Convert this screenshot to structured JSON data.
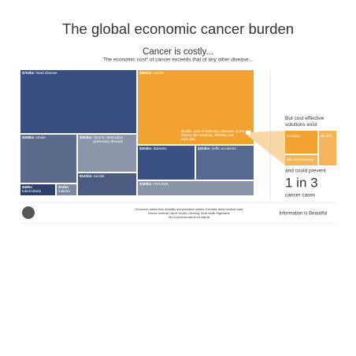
{
  "title": "The global economic cancer burden",
  "subtitle": "Cancer is costly...",
  "intro": "The economic cost* of cancer exceeds that of any other disease...",
  "chart_data": {
    "type": "treemap",
    "categories": [
      "heart disease",
      "cancer",
      "stroke",
      "chronic obstructive pulmonary disease",
      "suicide",
      "tuberculosis",
      "malaria",
      "diabetes",
      "traffic accidents",
      "HIV/AIDS"
    ],
    "values": [
      753,
      895,
      298,
      203,
      141,
      45,
      12,
      204,
      204,
      193
    ],
    "value_labels": [
      "$753bn",
      "$895bn",
      "$298bn",
      "$203bn",
      "$141bn",
      "$45bn",
      "$12bn",
      "$204bn",
      "$204bn",
      "$193bn"
    ],
    "colors": [
      "#384d80",
      "#f2a231",
      "#5a6a8b",
      "#8b97a9",
      "#4b5c80",
      "#2e4070",
      "#7b8aa0",
      "#3c5183",
      "#56698f",
      "#8996a8"
    ],
    "annotation": {
      "value_label": "$1.8tn",
      "text": "cost of reducing exposure to key risk factors like smoking, drinking and poor diet"
    }
  },
  "solutions": {
    "heading": "But cost effective solutions exist",
    "items": [
      "smoking",
      "alcohol",
      "diet and exercise"
    ],
    "prevent": "and could prevent",
    "fraction": "1 in 3",
    "cases": "cancer cases"
  },
  "footer": {
    "notes": [
      "* Economic losses from disability and premature deaths. Excludes direct medical costs.",
      "Sources: American Cancer Society, Livestrong, World Health Organisation",
      "See bit.ly/cancercosts for full data list"
    ],
    "brand": "Information is Beautiful"
  }
}
